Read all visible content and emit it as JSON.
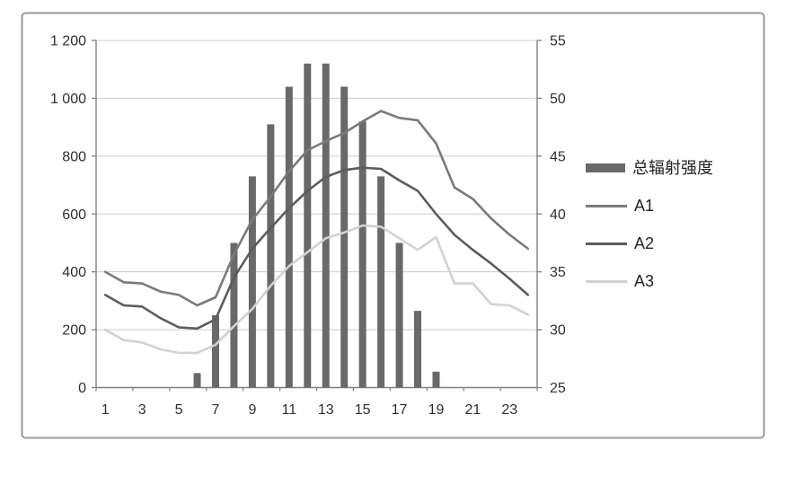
{
  "chart_data": {
    "type": "combo-bar-line",
    "title": "",
    "xlabel": "",
    "ylabel_left": "",
    "ylabel_right": "",
    "grid": "horizontal",
    "legend_position": "right",
    "categories": [
      1,
      2,
      3,
      4,
      5,
      6,
      7,
      8,
      9,
      10,
      11,
      12,
      13,
      14,
      15,
      16,
      17,
      18,
      19,
      20,
      21,
      22,
      23,
      24
    ],
    "x_tick_categories": [
      1,
      3,
      5,
      7,
      9,
      11,
      13,
      15,
      17,
      19,
      21,
      23
    ],
    "y_left": {
      "min": 0,
      "max": 1200,
      "tick_values": [
        0,
        200,
        400,
        600,
        800,
        1000,
        1200
      ],
      "tick_labels": [
        "0",
        "200",
        "400",
        "600",
        "800",
        "1 000",
        "1 200"
      ]
    },
    "y_right": {
      "min": 25,
      "max": 55,
      "tick_values": [
        25,
        30,
        35,
        40,
        45,
        50,
        55
      ],
      "tick_labels": [
        "25",
        "30",
        "35",
        "40",
        "45",
        "50",
        "55"
      ]
    },
    "bar_series": {
      "name": "总辐射强度",
      "axis": "left",
      "values": [
        null,
        null,
        null,
        null,
        null,
        50,
        250,
        500,
        730,
        910,
        1040,
        1120,
        1120,
        1040,
        920,
        730,
        500,
        265,
        55,
        null,
        null,
        null,
        null,
        null
      ]
    },
    "series": [
      {
        "name": "A1",
        "axis": "right",
        "color": "#7a7a7a",
        "values": [
          35.0,
          34.1,
          34.0,
          33.3,
          33.0,
          32.1,
          32.8,
          36.5,
          39.5,
          41.5,
          43.7,
          45.5,
          46.3,
          47.0,
          48.0,
          48.9,
          48.3,
          48.1,
          46.1,
          42.3,
          41.3,
          39.6,
          38.2,
          37.0
        ]
      },
      {
        "name": "A2",
        "axis": "right",
        "color": "#5c5c5c",
        "values": [
          33.0,
          32.1,
          32.0,
          31.0,
          30.2,
          30.1,
          30.9,
          34.5,
          37.0,
          38.8,
          40.5,
          42.0,
          43.2,
          43.8,
          44.0,
          43.9,
          42.9,
          42.0,
          40.0,
          38.2,
          36.9,
          35.7,
          34.4,
          33.0
        ]
      },
      {
        "name": "A3",
        "axis": "right",
        "color": "#d2d2d2",
        "values": [
          30.0,
          29.1,
          28.9,
          28.3,
          28.0,
          28.0,
          28.7,
          30.3,
          31.8,
          33.8,
          35.5,
          36.7,
          37.9,
          38.4,
          39.0,
          38.9,
          37.9,
          36.9,
          38.0,
          34.0,
          34.0,
          32.2,
          32.1,
          31.3
        ]
      }
    ]
  },
  "colors": {
    "bar": "#696969",
    "gridline": "#cccccc",
    "axis": "#808080",
    "frame_border": "#9a9a9a",
    "label_text": "#2f2f2f",
    "background": "#ffffff"
  }
}
